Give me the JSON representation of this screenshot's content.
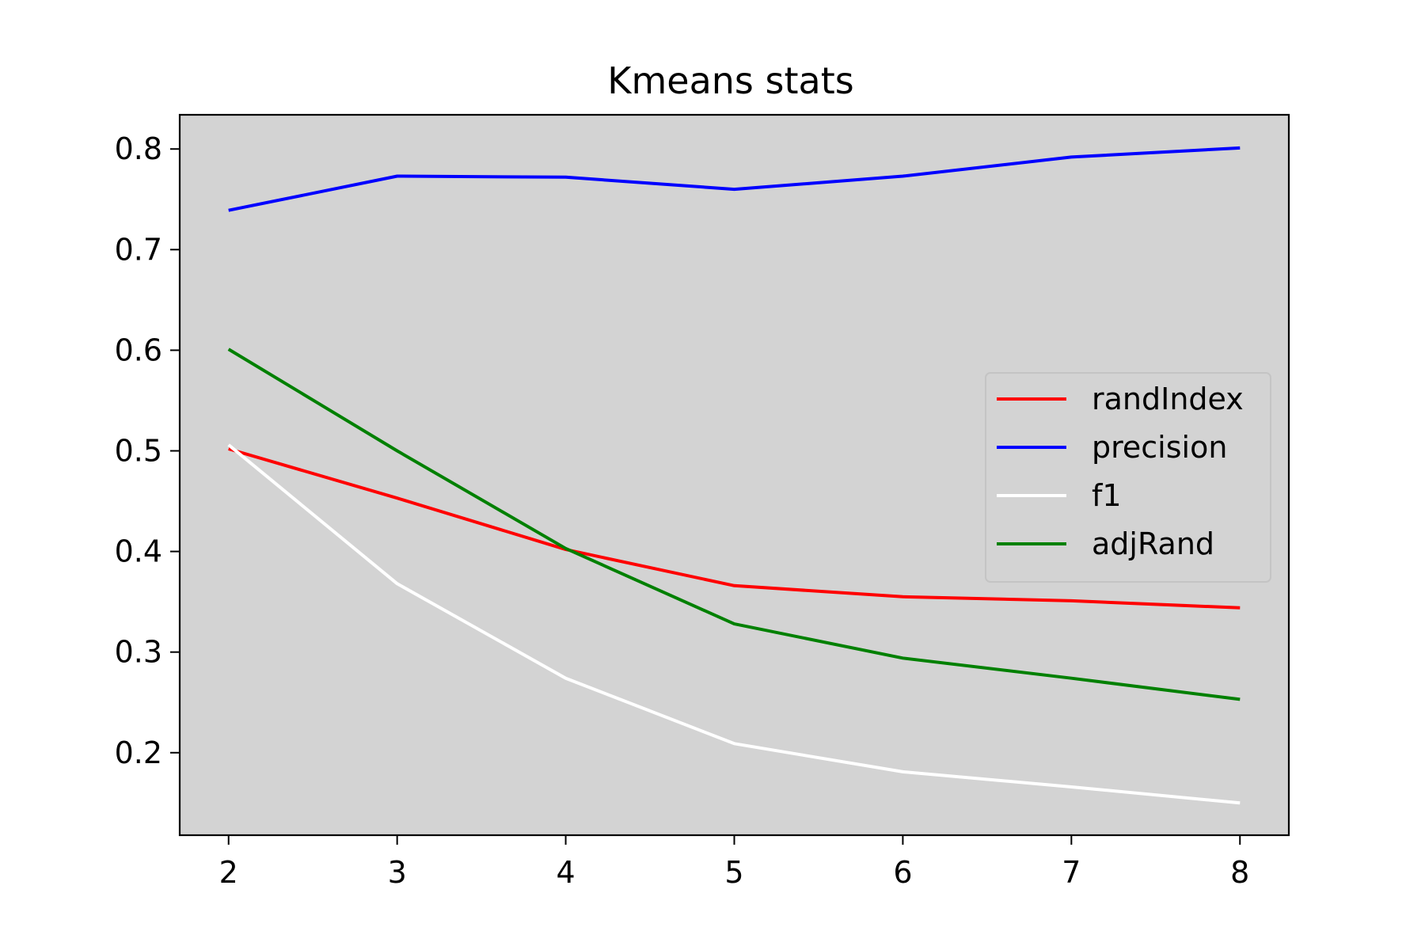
{
  "chart_data": {
    "type": "line",
    "title": "Kmeans stats",
    "xlabel": "",
    "ylabel": "",
    "x": [
      2,
      3,
      4,
      5,
      6,
      7,
      8
    ],
    "xlim": [
      1.71,
      8.29
    ],
    "ylim": [
      0.118,
      0.834
    ],
    "x_ticks": [
      2,
      3,
      4,
      5,
      6,
      7,
      8
    ],
    "y_ticks": [
      0.2,
      0.3,
      0.4,
      0.5,
      0.6,
      0.7,
      0.8
    ],
    "grid": false,
    "legend_position": "center-right",
    "plot_background": "#d3d3d3",
    "series": [
      {
        "name": "randIndex",
        "color": "#ff0000",
        "values": [
          0.502,
          0.453,
          0.402,
          0.366,
          0.355,
          0.351,
          0.344
        ]
      },
      {
        "name": "precision",
        "color": "#0000ff",
        "values": [
          0.739,
          0.773,
          0.772,
          0.76,
          0.773,
          0.792,
          0.801
        ]
      },
      {
        "name": "f1",
        "color": "#ffffff",
        "values": [
          0.506,
          0.368,
          0.274,
          0.209,
          0.181,
          0.166,
          0.15
        ]
      },
      {
        "name": "adjRand",
        "color": "#008000",
        "values": [
          0.601,
          0.5,
          0.403,
          0.328,
          0.294,
          0.274,
          0.253
        ]
      }
    ]
  }
}
